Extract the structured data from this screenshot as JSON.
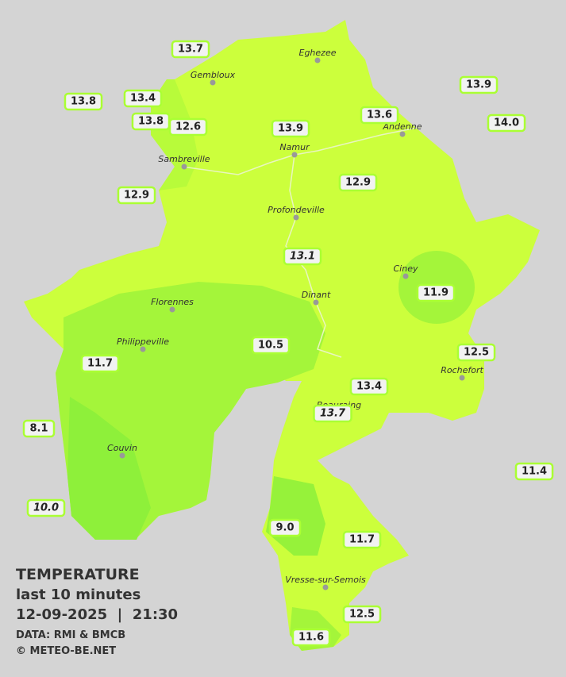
{
  "legend": {
    "title": "TEMPERATURE",
    "subtitle": "last 10 minutes",
    "datetime": "12-09-2025  |  21:30",
    "source": "DATA: RMI & BMCB",
    "credit": "© METEO-BE.NET"
  },
  "cities": [
    "Eghezee",
    "Gembloux",
    "Andenne",
    "Namur",
    "Sambreville",
    "Profondeville",
    "Ciney",
    "Florennes",
    "Dinant",
    "Philippeville",
    "Rochefort",
    "Beauraing",
    "Couvin",
    "Vresse-sur-Semois"
  ],
  "stations": [
    {
      "value": "13.7",
      "italic": false
    },
    {
      "value": "13.4",
      "italic": false
    },
    {
      "value": "13.8",
      "italic": false
    },
    {
      "value": "13.8",
      "italic": false
    },
    {
      "value": "12.6",
      "italic": false
    },
    {
      "value": "13.9",
      "italic": false
    },
    {
      "value": "13.6",
      "italic": false
    },
    {
      "value": "13.9",
      "italic": false
    },
    {
      "value": "14.0",
      "italic": false
    },
    {
      "value": "12.9",
      "italic": false
    },
    {
      "value": "12.9",
      "italic": false
    },
    {
      "value": "13.1",
      "italic": true
    },
    {
      "value": "11.9",
      "italic": false
    },
    {
      "value": "10.5",
      "italic": false
    },
    {
      "value": "11.7",
      "italic": false
    },
    {
      "value": "12.5",
      "italic": false
    },
    {
      "value": "13.4",
      "italic": false
    },
    {
      "value": "13.7",
      "italic": true
    },
    {
      "value": "8.1",
      "italic": false
    },
    {
      "value": "11.4",
      "italic": false
    },
    {
      "value": "10.0",
      "italic": true
    },
    {
      "value": "9.0",
      "italic": false
    },
    {
      "value": "11.7",
      "italic": false
    },
    {
      "value": "12.5",
      "italic": false
    },
    {
      "value": "11.6",
      "italic": false
    }
  ]
}
